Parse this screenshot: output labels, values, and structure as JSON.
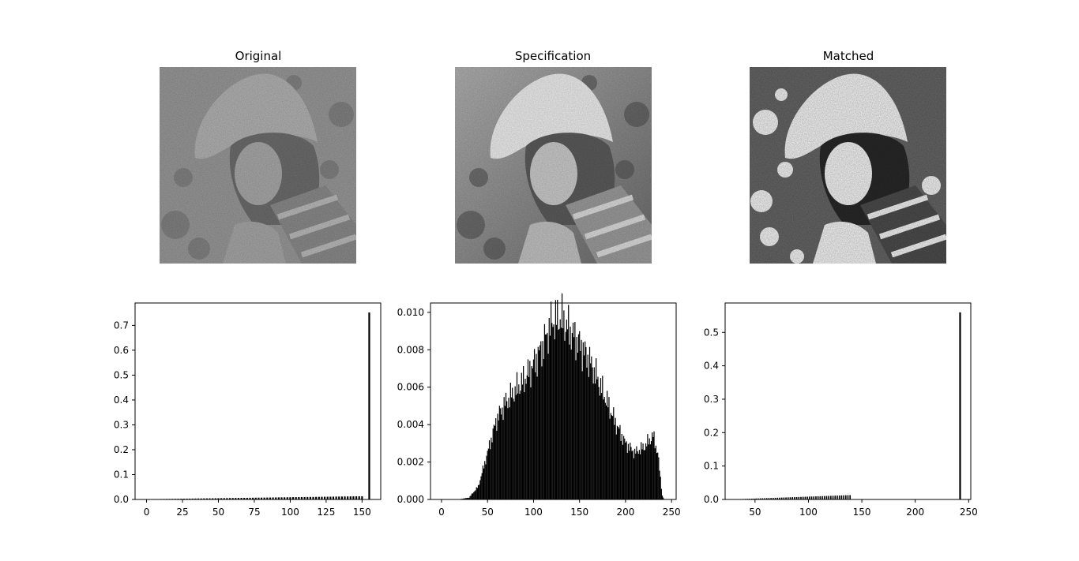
{
  "panels": [
    {
      "title": "Original"
    },
    {
      "title": "Specification"
    },
    {
      "title": "Matched"
    }
  ],
  "chart_data": [
    {
      "type": "bar",
      "title": "",
      "xlabel": "",
      "ylabel": "",
      "xlim": [
        -8,
        163
      ],
      "ylim": [
        0,
        0.79
      ],
      "xticks": [
        0,
        25,
        50,
        75,
        100,
        125,
        150
      ],
      "yticks": [
        0.0,
        0.1,
        0.2,
        0.3,
        0.4,
        0.5,
        0.6,
        0.7
      ],
      "ytick_labels": [
        "0.0",
        "0.1",
        "0.2",
        "0.3",
        "0.4",
        "0.5",
        "0.6",
        "0.7"
      ],
      "profile": "ramp",
      "range": [
        0,
        150
      ],
      "ramp": [
        0.001,
        0.013
      ],
      "spike": {
        "x": 155,
        "value": 0.752
      }
    },
    {
      "type": "bar",
      "title": "",
      "xlabel": "",
      "ylabel": "",
      "xlim": [
        -12,
        255
      ],
      "ylim": [
        0,
        0.0105
      ],
      "xticks": [
        0,
        50,
        100,
        150,
        200,
        250
      ],
      "yticks": [
        0.0,
        0.002,
        0.004,
        0.006,
        0.008,
        0.01
      ],
      "ytick_labels": [
        "0.000",
        "0.002",
        "0.004",
        "0.006",
        "0.008",
        "0.010"
      ],
      "profile": "curve",
      "curve": [
        [
          18,
          0.0
        ],
        [
          30,
          0.0001
        ],
        [
          40,
          0.0007
        ],
        [
          50,
          0.0025
        ],
        [
          60,
          0.0043
        ],
        [
          70,
          0.0052
        ],
        [
          80,
          0.0058
        ],
        [
          90,
          0.0064
        ],
        [
          100,
          0.0072
        ],
        [
          110,
          0.0082
        ],
        [
          120,
          0.0095
        ],
        [
          130,
          0.0097
        ],
        [
          140,
          0.009
        ],
        [
          150,
          0.0083
        ],
        [
          160,
          0.0075
        ],
        [
          170,
          0.0064
        ],
        [
          180,
          0.0052
        ],
        [
          190,
          0.004
        ],
        [
          200,
          0.003
        ],
        [
          210,
          0.0025
        ],
        [
          220,
          0.0028
        ],
        [
          230,
          0.0034
        ],
        [
          235,
          0.0025
        ],
        [
          240,
          0.0002
        ],
        [
          242,
          0.0
        ]
      ]
    },
    {
      "type": "bar",
      "title": "",
      "xlabel": "",
      "ylabel": "",
      "xlim": [
        22,
        252
      ],
      "ylim": [
        0,
        0.588
      ],
      "xticks": [
        50,
        100,
        150,
        200,
        250
      ],
      "yticks": [
        0.0,
        0.1,
        0.2,
        0.3,
        0.4,
        0.5
      ],
      "ytick_labels": [
        "0.0",
        "0.1",
        "0.2",
        "0.3",
        "0.4",
        "0.5"
      ],
      "profile": "ramp",
      "range": [
        35,
        139
      ],
      "ramp": [
        0.001,
        0.013
      ],
      "spike": {
        "x": 242,
        "value": 0.56
      }
    }
  ]
}
